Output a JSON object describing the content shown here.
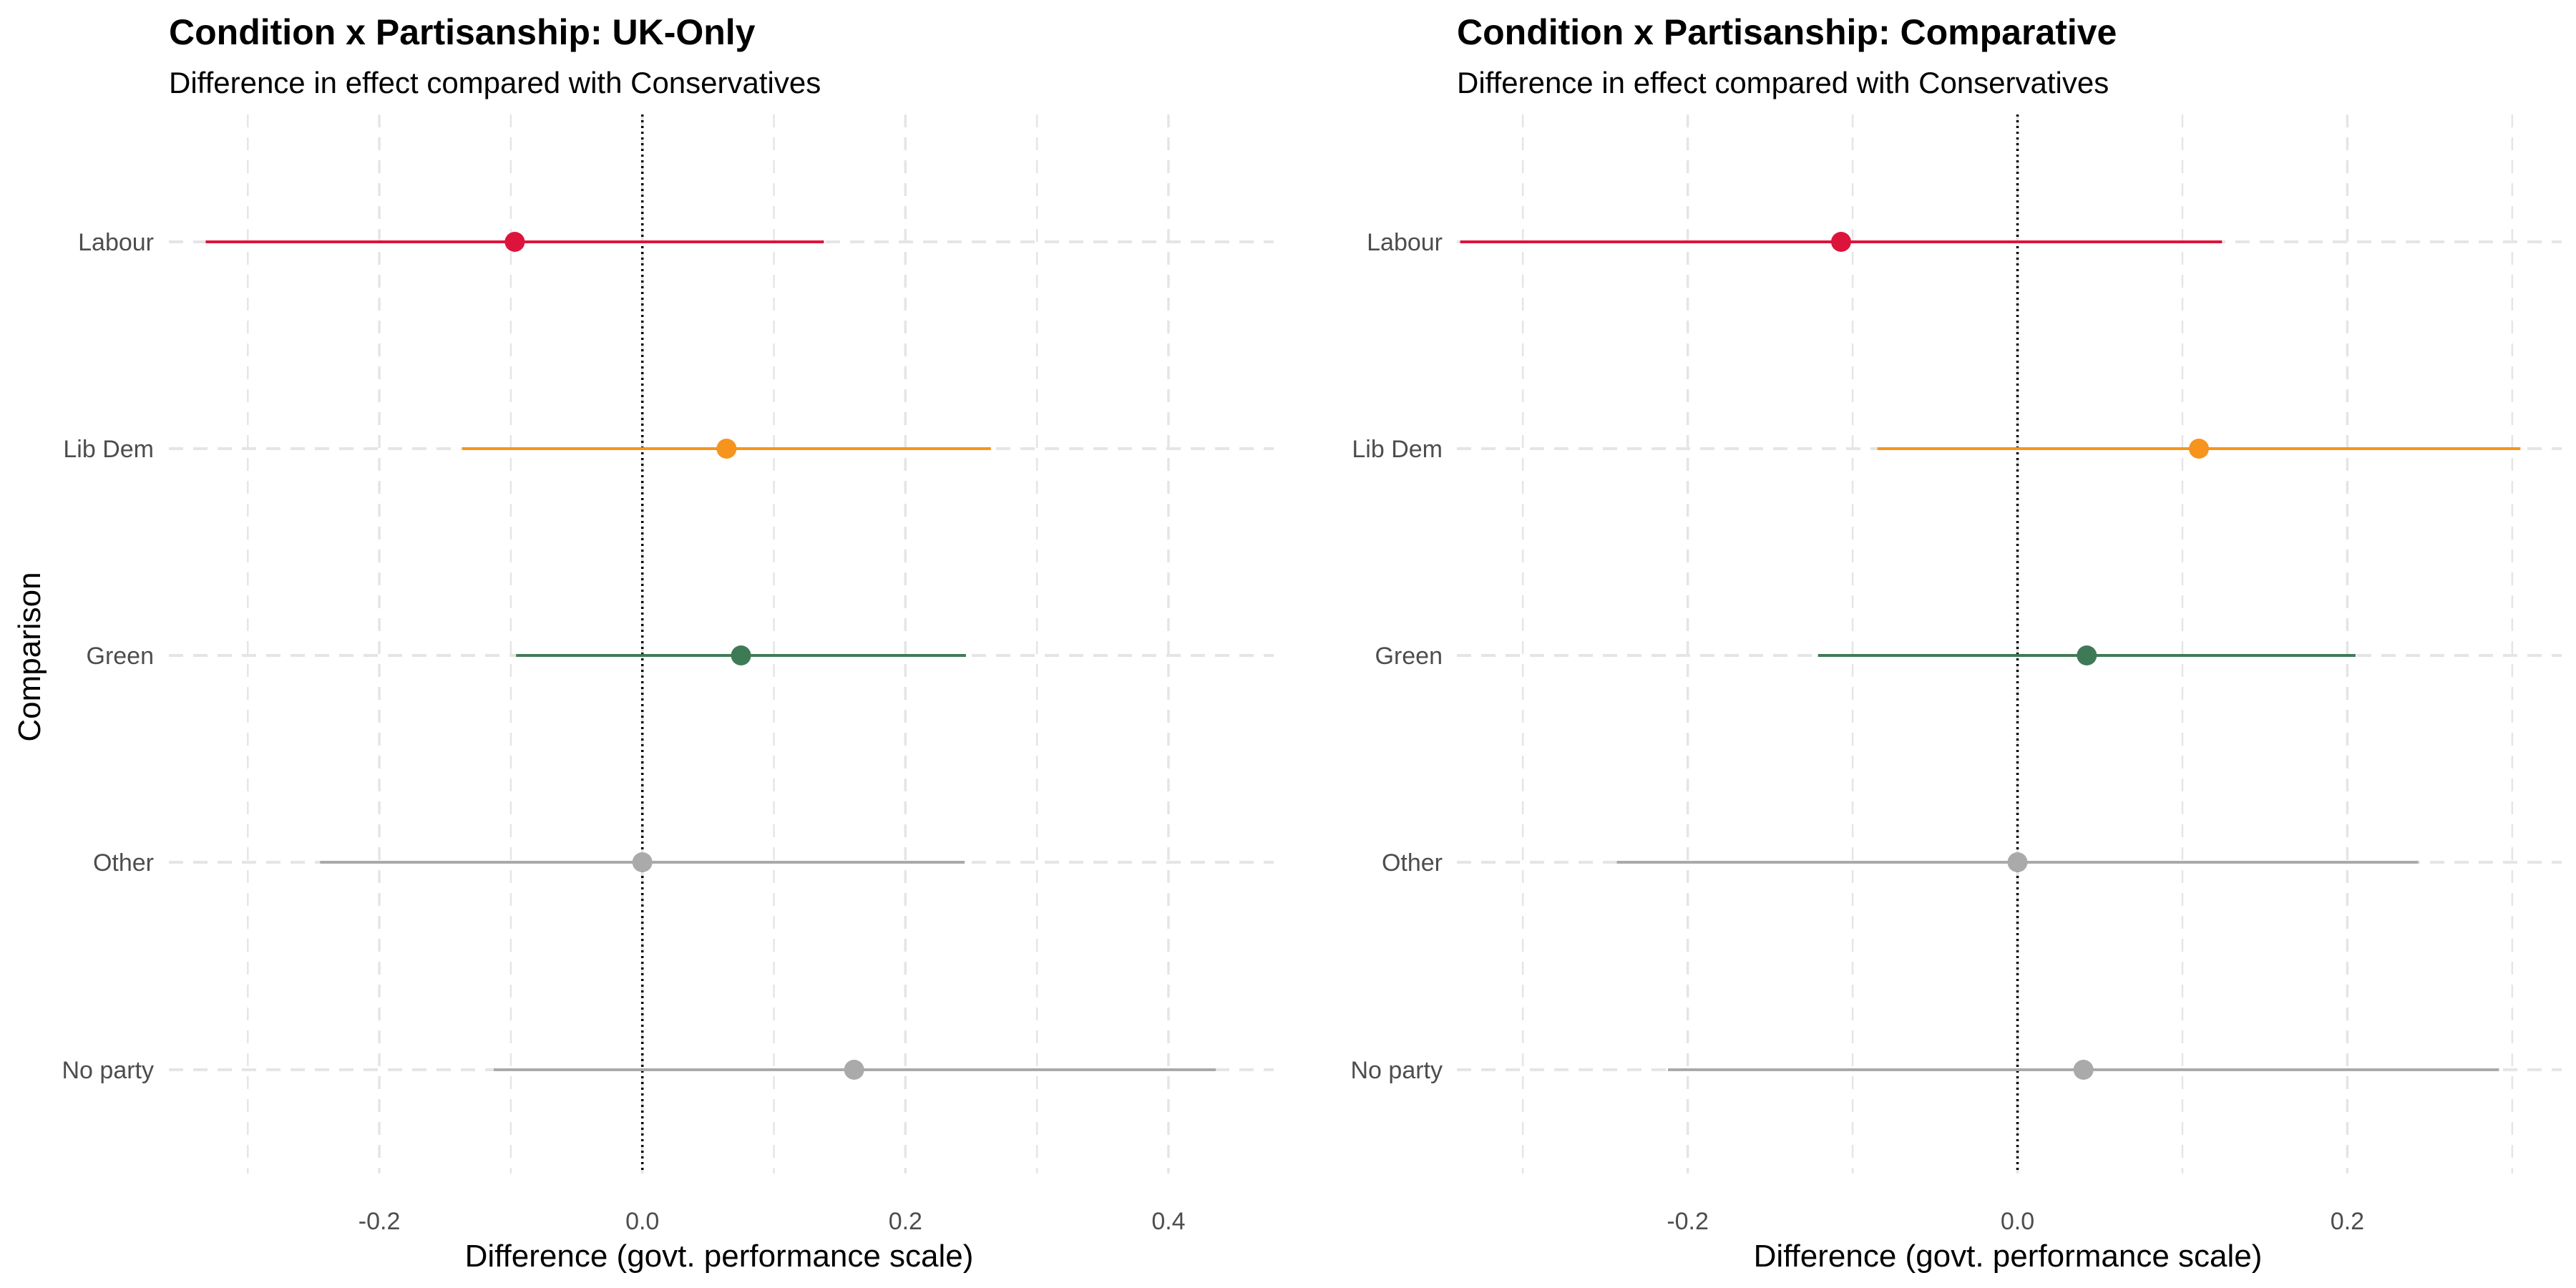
{
  "y_axis_title": "Comparison",
  "colors": {
    "Labour": "#DC143C",
    "Lib Dem": "#F7941D",
    "Green": "#3F7A56",
    "Other": "#AAAAAA",
    "No party": "#AAAAAA",
    "grid": "#e5e5e5",
    "zero_line": "#000000"
  },
  "chart_data": [
    {
      "type": "scatter",
      "title": "Condition x Partisanship: UK-Only",
      "subtitle": "Difference in effect compared with Conservatives",
      "xlabel": "Difference (govt. performance scale)",
      "ylabel": "Comparison",
      "xlim": [
        -0.36,
        0.48
      ],
      "xticks": [
        -0.2,
        0.0,
        0.2,
        0.4
      ],
      "xtick_labels": [
        "-0.2",
        "0.0",
        "0.2",
        "0.4"
      ],
      "grid": true,
      "reference_line_x": 0,
      "categories": [
        "Labour",
        "Lib Dem",
        "Green",
        "Other",
        "No party"
      ],
      "points": [
        {
          "label": "Labour",
          "estimate": -0.097,
          "lower": -0.332,
          "upper": 0.138
        },
        {
          "label": "Lib Dem",
          "estimate": 0.064,
          "lower": -0.137,
          "upper": 0.265
        },
        {
          "label": "Green",
          "estimate": 0.075,
          "lower": -0.096,
          "upper": 0.246
        },
        {
          "label": "Other",
          "estimate": 0.0,
          "lower": -0.245,
          "upper": 0.245
        },
        {
          "label": "No party",
          "estimate": 0.161,
          "lower": -0.113,
          "upper": 0.436
        }
      ]
    },
    {
      "type": "scatter",
      "title": "Condition x Partisanship: Comparative",
      "subtitle": "Difference in effect compared with Conservatives",
      "xlabel": "Difference (govt. performance scale)",
      "ylabel": "",
      "xlim": [
        -0.34,
        0.33
      ],
      "xticks": [
        -0.2,
        0.0,
        0.2
      ],
      "xtick_labels": [
        "-0.2",
        "0.0",
        "0.2"
      ],
      "grid": true,
      "reference_line_x": 0,
      "categories": [
        "Labour",
        "Lib Dem",
        "Green",
        "Other",
        "No party"
      ],
      "points": [
        {
          "label": "Labour",
          "estimate": -0.107,
          "lower": -0.338,
          "upper": 0.124
        },
        {
          "label": "Lib Dem",
          "estimate": 0.11,
          "lower": -0.085,
          "upper": 0.305
        },
        {
          "label": "Green",
          "estimate": 0.042,
          "lower": -0.121,
          "upper": 0.205
        },
        {
          "label": "Other",
          "estimate": 0.0,
          "lower": -0.243,
          "upper": 0.243
        },
        {
          "label": "No party",
          "estimate": 0.04,
          "lower": -0.212,
          "upper": 0.292
        }
      ]
    }
  ]
}
